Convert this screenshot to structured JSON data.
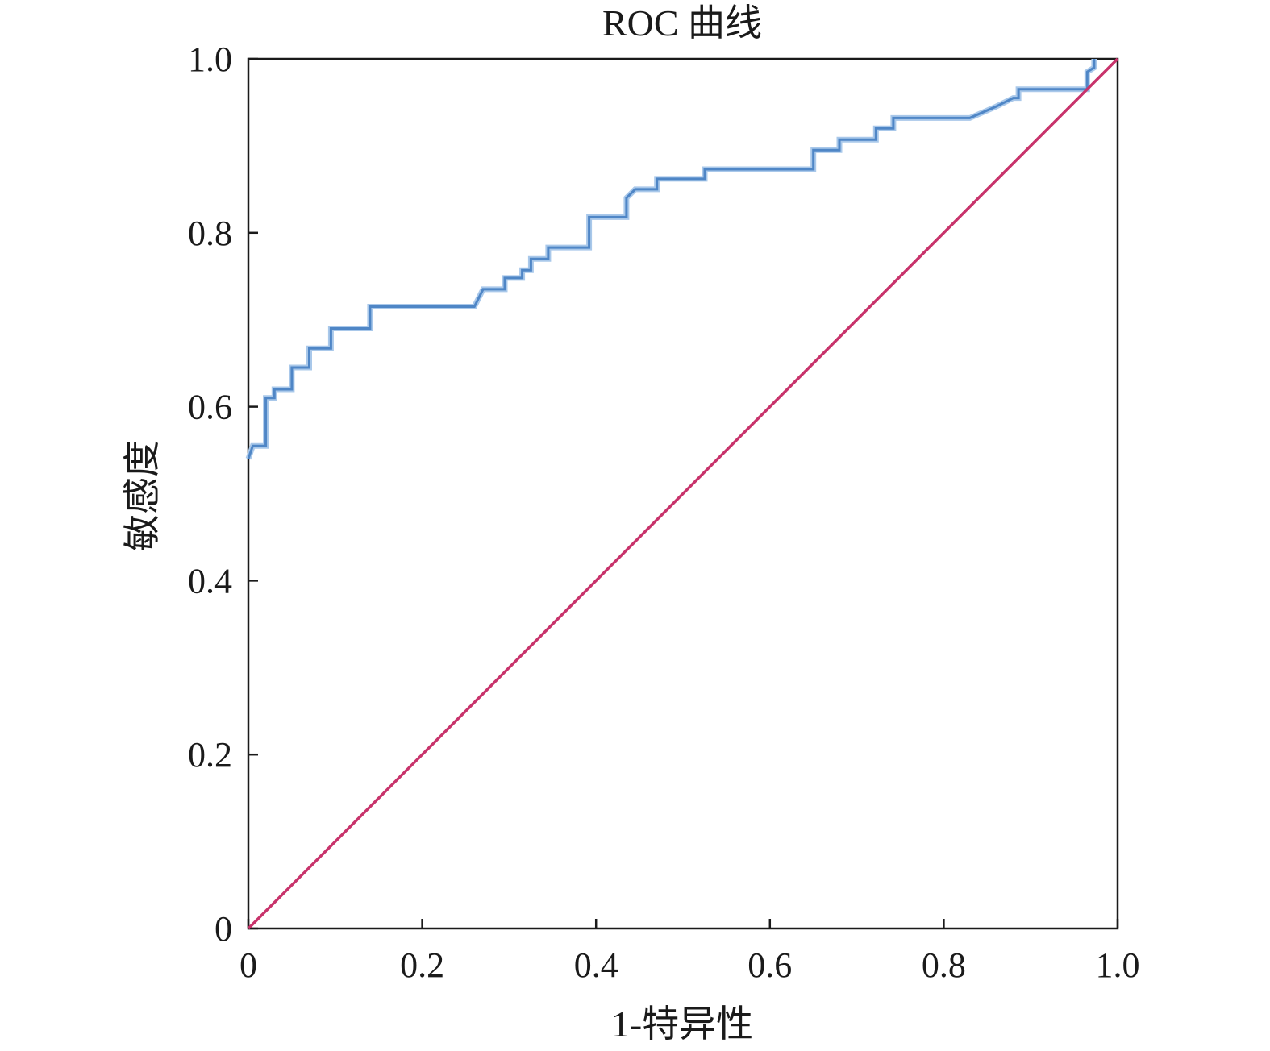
{
  "chart_data": {
    "type": "line",
    "title": "ROC 曲线",
    "xlabel": "1-特异性",
    "ylabel": "敏感度",
    "xlim": [
      0,
      1
    ],
    "ylim": [
      0,
      1
    ],
    "x_ticks": [
      "0",
      "0.2",
      "0.4",
      "0.6",
      "0.8",
      "1.0"
    ],
    "y_ticks": [
      "0",
      "0.2",
      "0.4",
      "0.6",
      "0.8",
      "1.0"
    ],
    "grid": false,
    "legend": "none",
    "series": [
      {
        "color": "#4f86c6",
        "step": true,
        "points": [
          [
            0.0,
            0.54
          ],
          [
            0.005,
            0.555
          ],
          [
            0.02,
            0.555
          ],
          [
            0.02,
            0.61
          ],
          [
            0.03,
            0.61
          ],
          [
            0.03,
            0.62
          ],
          [
            0.05,
            0.62
          ],
          [
            0.05,
            0.645
          ],
          [
            0.07,
            0.645
          ],
          [
            0.07,
            0.667
          ],
          [
            0.095,
            0.667
          ],
          [
            0.095,
            0.69
          ],
          [
            0.14,
            0.69
          ],
          [
            0.14,
            0.715
          ],
          [
            0.26,
            0.715
          ],
          [
            0.27,
            0.735
          ],
          [
            0.295,
            0.735
          ],
          [
            0.295,
            0.748
          ],
          [
            0.315,
            0.748
          ],
          [
            0.315,
            0.757
          ],
          [
            0.325,
            0.757
          ],
          [
            0.325,
            0.77
          ],
          [
            0.345,
            0.77
          ],
          [
            0.345,
            0.783
          ],
          [
            0.37,
            0.783
          ],
          [
            0.37,
            0.783
          ],
          [
            0.392,
            0.783
          ],
          [
            0.392,
            0.818
          ],
          [
            0.435,
            0.818
          ],
          [
            0.435,
            0.84
          ],
          [
            0.445,
            0.85
          ],
          [
            0.47,
            0.85
          ],
          [
            0.47,
            0.862
          ],
          [
            0.525,
            0.862
          ],
          [
            0.525,
            0.873
          ],
          [
            0.65,
            0.873
          ],
          [
            0.65,
            0.895
          ],
          [
            0.68,
            0.895
          ],
          [
            0.68,
            0.907
          ],
          [
            0.722,
            0.907
          ],
          [
            0.722,
            0.92
          ],
          [
            0.742,
            0.92
          ],
          [
            0.742,
            0.932
          ],
          [
            0.83,
            0.932
          ],
          [
            0.86,
            0.945
          ],
          [
            0.88,
            0.955
          ],
          [
            0.886,
            0.955
          ],
          [
            0.886,
            0.965
          ],
          [
            0.965,
            0.965
          ],
          [
            0.965,
            0.985
          ],
          [
            0.973,
            0.99
          ],
          [
            0.973,
            1.0
          ]
        ]
      },
      {
        "color": "#c8336b",
        "step": false,
        "points": [
          [
            0,
            0
          ],
          [
            1,
            1
          ]
        ]
      }
    ]
  }
}
